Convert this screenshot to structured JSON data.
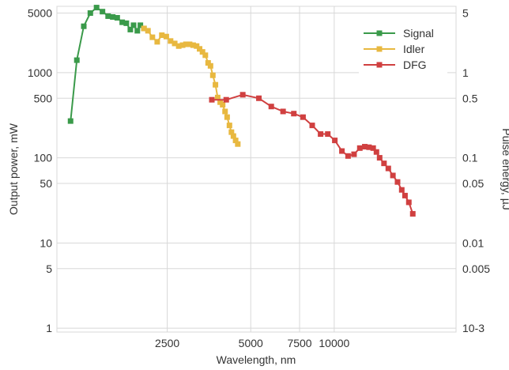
{
  "chart_data": {
    "type": "line",
    "xlabel": "Wavelength, nm",
    "ylabel_left": "Output power, mW",
    "ylabel_right": "Pulse energy, µJ",
    "x_scale": "log",
    "y_scale": "log",
    "xlim": [
      1000,
      27500
    ],
    "ylim": [
      0.9,
      6000
    ],
    "grid": true,
    "legend_position": "top-right",
    "x_ticks": [
      {
        "value": 2500,
        "label": "2500"
      },
      {
        "value": 5000,
        "label": "5000"
      },
      {
        "value": 7500,
        "label": "7500"
      },
      {
        "value": 10000,
        "label": "10000"
      }
    ],
    "y_ticks_left": [
      {
        "value": 1,
        "label": "1"
      },
      {
        "value": 5,
        "label": "5"
      },
      {
        "value": 10,
        "label": "10"
      },
      {
        "value": 50,
        "label": "50"
      },
      {
        "value": 100,
        "label": "100"
      },
      {
        "value": 500,
        "label": "500"
      },
      {
        "value": 1000,
        "label": "1000"
      },
      {
        "value": 5000,
        "label": "5000"
      }
    ],
    "y_ticks_right": [
      {
        "value": 1,
        "label": "10-3"
      },
      {
        "value": 5,
        "label": "0.005"
      },
      {
        "value": 10,
        "label": "0.01"
      },
      {
        "value": 50,
        "label": "0.05"
      },
      {
        "value": 100,
        "label": "0.1"
      },
      {
        "value": 500,
        "label": "0.5"
      },
      {
        "value": 1000,
        "label": "1"
      },
      {
        "value": 5000,
        "label": "5"
      }
    ],
    "series": [
      {
        "name": "Signal",
        "color": "#3a9a4a",
        "points": [
          [
            1120,
            270
          ],
          [
            1180,
            1400
          ],
          [
            1250,
            3500
          ],
          [
            1320,
            5000
          ],
          [
            1390,
            5800
          ],
          [
            1460,
            5200
          ],
          [
            1530,
            4600
          ],
          [
            1590,
            4500
          ],
          [
            1650,
            4400
          ],
          [
            1720,
            3900
          ],
          [
            1780,
            3800
          ],
          [
            1840,
            3200
          ],
          [
            1890,
            3600
          ],
          [
            1950,
            3100
          ],
          [
            2000,
            3600
          ],
          [
            2060,
            3300
          ]
        ]
      },
      {
        "name": "Idler",
        "color": "#e8b840",
        "points": [
          [
            2060,
            3300
          ],
          [
            2130,
            3100
          ],
          [
            2210,
            2600
          ],
          [
            2300,
            2300
          ],
          [
            2390,
            2750
          ],
          [
            2480,
            2650
          ],
          [
            2570,
            2350
          ],
          [
            2660,
            2200
          ],
          [
            2750,
            2050
          ],
          [
            2840,
            2100
          ],
          [
            2920,
            2150
          ],
          [
            3010,
            2150
          ],
          [
            3100,
            2100
          ],
          [
            3190,
            2050
          ],
          [
            3270,
            1900
          ],
          [
            3350,
            1750
          ],
          [
            3430,
            1600
          ],
          [
            3510,
            1300
          ],
          [
            3580,
            1200
          ],
          [
            3650,
            930
          ],
          [
            3730,
            720
          ],
          [
            3800,
            510
          ],
          [
            3880,
            450
          ],
          [
            3960,
            420
          ],
          [
            4040,
            350
          ],
          [
            4110,
            300
          ],
          [
            4190,
            240
          ],
          [
            4260,
            200
          ],
          [
            4330,
            180
          ],
          [
            4410,
            160
          ],
          [
            4490,
            145
          ]
        ]
      },
      {
        "name": "DFG",
        "color": "#d04040",
        "points": [
          [
            3620,
            480
          ],
          [
            4080,
            480
          ],
          [
            4680,
            550
          ],
          [
            5350,
            500
          ],
          [
            5930,
            400
          ],
          [
            6540,
            350
          ],
          [
            7150,
            330
          ],
          [
            7720,
            300
          ],
          [
            8330,
            240
          ],
          [
            8930,
            190
          ],
          [
            9480,
            190
          ],
          [
            10050,
            160
          ],
          [
            10660,
            120
          ],
          [
            11220,
            105
          ],
          [
            11790,
            110
          ],
          [
            12370,
            130
          ],
          [
            12890,
            135
          ],
          [
            13350,
            133
          ],
          [
            13820,
            130
          ],
          [
            14200,
            117
          ],
          [
            14580,
            100
          ],
          [
            15120,
            86
          ],
          [
            15670,
            75
          ],
          [
            16280,
            62
          ],
          [
            16920,
            52
          ],
          [
            17520,
            42
          ],
          [
            18000,
            36
          ],
          [
            18580,
            30
          ],
          [
            19200,
            22
          ]
        ]
      }
    ]
  }
}
